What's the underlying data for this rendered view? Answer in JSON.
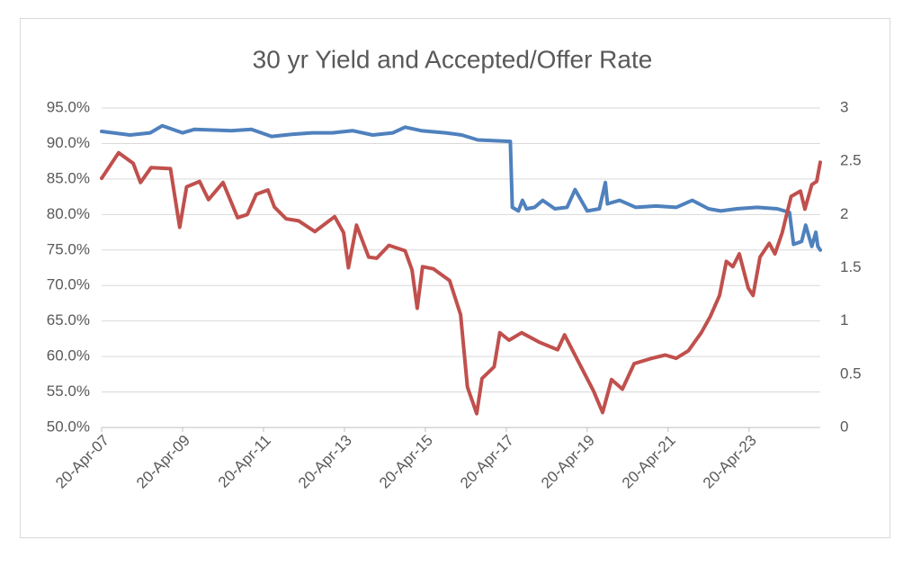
{
  "chart_data": {
    "type": "line",
    "title": "30 yr Yield and Accepted/Offer Rate",
    "xlim": [
      2007.3,
      2025.06
    ],
    "xticks": [
      {
        "value": 2007.3,
        "label": "20-Apr-07"
      },
      {
        "value": 2009.3,
        "label": "20-Apr-09"
      },
      {
        "value": 2011.3,
        "label": "20-Apr-11"
      },
      {
        "value": 2013.3,
        "label": "20-Apr-13"
      },
      {
        "value": 2015.3,
        "label": "20-Apr-15"
      },
      {
        "value": 2017.3,
        "label": "20-Apr-17"
      },
      {
        "value": 2019.3,
        "label": "20-Apr-19"
      },
      {
        "value": 2021.3,
        "label": "20-Apr-21"
      },
      {
        "value": 2023.3,
        "label": "20-Apr-23"
      }
    ],
    "ylim": [
      50,
      95
    ],
    "yticks": [
      {
        "value": 50,
        "label": "50.0%"
      },
      {
        "value": 55,
        "label": "55.0%"
      },
      {
        "value": 60,
        "label": "60.0%"
      },
      {
        "value": 65,
        "label": "65.0%"
      },
      {
        "value": 70,
        "label": "70.0%"
      },
      {
        "value": 75,
        "label": "75.0%"
      },
      {
        "value": 80,
        "label": "80.0%"
      },
      {
        "value": 85,
        "label": "85.0%"
      },
      {
        "value": 90,
        "label": "90.0%"
      },
      {
        "value": 95,
        "label": "95.0%"
      }
    ],
    "y2lim": [
      0,
      3
    ],
    "y2ticks": [
      0,
      {
        "value": 0.5,
        "label": "0.5"
      },
      1,
      {
        "value": 1.5,
        "label": "1.5"
      },
      2,
      {
        "value": 2.5,
        "label": "2.5"
      },
      3
    ],
    "grid": true,
    "series": [
      {
        "color": "#4f81bd",
        "axis": "y",
        "x": [
          2007.3,
          2008.0,
          2008.5,
          2008.8,
          2009.3,
          2009.6,
          2010.5,
          2011.0,
          2011.5,
          2012.0,
          2012.5,
          2013.0,
          2013.5,
          2014.0,
          2014.5,
          2014.8,
          2015.2,
          2015.8,
          2016.2,
          2016.6,
          2017.4,
          2017.45,
          2017.6,
          2017.7,
          2017.8,
          2018.0,
          2018.2,
          2018.5,
          2018.8,
          2019.0,
          2019.3,
          2019.6,
          2019.75,
          2019.8,
          2020.1,
          2020.5,
          2021.0,
          2021.5,
          2021.9,
          2022.3,
          2022.6,
          2023.0,
          2023.5,
          2024.0,
          2024.3,
          2024.4,
          2024.6,
          2024.7,
          2024.85,
          2024.95,
          2025.0,
          2025.06
        ],
        "values": [
          91.7,
          91.2,
          91.5,
          92.5,
          91.5,
          92.0,
          91.8,
          92.0,
          91.0,
          91.3,
          91.5,
          91.5,
          91.8,
          91.2,
          91.5,
          92.3,
          91.8,
          91.5,
          91.2,
          90.5,
          90.3,
          81.0,
          80.5,
          82.0,
          80.8,
          81.0,
          82.0,
          80.8,
          81.0,
          83.5,
          80.5,
          80.8,
          84.5,
          81.5,
          82.0,
          81.0,
          81.2,
          81.0,
          82.0,
          80.8,
          80.5,
          80.8,
          81.0,
          80.8,
          80.3,
          75.8,
          76.2,
          78.5,
          75.5,
          77.5,
          75.5,
          75.0
        ]
      },
      {
        "color": "#c0504d",
        "axis": "y2",
        "x": [
          2007.3,
          2007.72,
          2008.08,
          2008.26,
          2008.52,
          2009.0,
          2009.23,
          2009.4,
          2009.72,
          2009.94,
          2010.3,
          2010.66,
          2010.9,
          2011.12,
          2011.41,
          2011.57,
          2011.86,
          2012.17,
          2012.57,
          2013.06,
          2013.28,
          2013.4,
          2013.6,
          2013.9,
          2014.1,
          2014.4,
          2014.8,
          2014.97,
          2015.1,
          2015.23,
          2015.5,
          2015.9,
          2016.17,
          2016.34,
          2016.57,
          2016.7,
          2017.0,
          2017.14,
          2017.37,
          2017.68,
          2018.12,
          2018.57,
          2018.74,
          2019.12,
          2019.46,
          2019.68,
          2019.9,
          2020.17,
          2020.46,
          2020.9,
          2021.23,
          2021.5,
          2021.8,
          2022.12,
          2022.34,
          2022.57,
          2022.74,
          2022.9,
          2023.06,
          2023.28,
          2023.4,
          2023.57,
          2023.8,
          2023.94,
          2024.12,
          2024.34,
          2024.57,
          2024.68,
          2024.85,
          2024.97,
          2025.06
        ],
        "values": [
          2.34,
          2.58,
          2.48,
          2.3,
          2.44,
          2.43,
          1.88,
          2.26,
          2.31,
          2.14,
          2.3,
          1.97,
          2.0,
          2.19,
          2.23,
          2.07,
          1.96,
          1.94,
          1.84,
          1.98,
          1.83,
          1.5,
          1.9,
          1.6,
          1.59,
          1.71,
          1.66,
          1.48,
          1.12,
          1.51,
          1.49,
          1.38,
          1.06,
          0.38,
          0.13,
          0.46,
          0.57,
          0.89,
          0.82,
          0.89,
          0.8,
          0.73,
          0.87,
          0.59,
          0.34,
          0.14,
          0.45,
          0.36,
          0.6,
          0.65,
          0.68,
          0.65,
          0.72,
          0.89,
          1.04,
          1.24,
          1.56,
          1.51,
          1.63,
          1.31,
          1.24,
          1.6,
          1.73,
          1.63,
          1.83,
          2.17,
          2.22,
          2.05,
          2.28,
          2.31,
          2.49
        ]
      }
    ]
  }
}
